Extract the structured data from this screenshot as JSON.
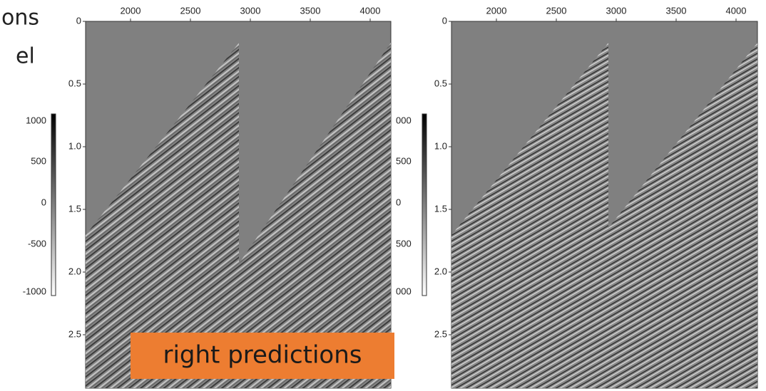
{
  "text_fragments": [
    "ons",
    "el"
  ],
  "panels": [
    {
      "x_ticks": [
        "2000",
        "2500",
        "3000",
        "3500",
        "4000"
      ],
      "y_ticks": [
        "0",
        "0.5",
        "1.0",
        "1.5",
        "2.0",
        "2.5"
      ],
      "colorbar_ticks": [
        "1000",
        "500",
        "0",
        "-500",
        "-1000"
      ]
    },
    {
      "x_ticks": [
        "2000",
        "2500",
        "3000",
        "3500",
        "4000"
      ],
      "y_ticks": [
        "0",
        "0.5",
        "1.0",
        "1.5",
        "2.0",
        "2.5"
      ],
      "colorbar_ticks": [
        "000",
        "500",
        "0",
        "500",
        "000"
      ]
    }
  ],
  "callout": "right predictions"
}
